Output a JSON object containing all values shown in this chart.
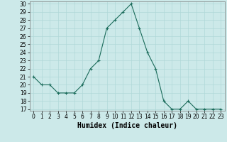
{
  "xlabel": "Humidex (Indice chaleur)",
  "x": [
    0,
    1,
    2,
    3,
    4,
    5,
    6,
    7,
    8,
    9,
    10,
    11,
    12,
    13,
    14,
    15,
    16,
    17,
    18,
    19,
    20,
    21,
    22,
    23
  ],
  "y": [
    21,
    20,
    20,
    19,
    19,
    19,
    20,
    22,
    23,
    27,
    28,
    29,
    30,
    27,
    24,
    22,
    18,
    17,
    17,
    18,
    17,
    17,
    17,
    17
  ],
  "ylim_min": 17,
  "ylim_max": 30,
  "yticks": [
    17,
    18,
    19,
    20,
    21,
    22,
    23,
    24,
    25,
    26,
    27,
    28,
    29,
    30
  ],
  "line_color": "#1a6b5a",
  "marker_size": 2.5,
  "bg_color": "#cce9e9",
  "grid_color": "#b0d8d8",
  "tick_label_fontsize": 5.5,
  "axis_label_fontsize": 7.0
}
